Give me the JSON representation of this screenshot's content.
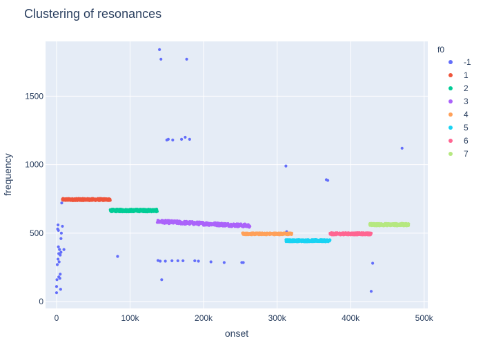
{
  "chart_data": {
    "type": "scatter",
    "title": "Clustering of resonances",
    "xlabel": "onset",
    "ylabel": "frequency",
    "xlim": [
      -15000,
      505000
    ],
    "ylim": [
      -50,
      1900
    ],
    "x_ticks": [
      0,
      100000,
      200000,
      300000,
      400000,
      500000
    ],
    "x_tick_labels": [
      "0",
      "100k",
      "200k",
      "300k",
      "400k",
      "500k"
    ],
    "y_ticks": [
      0,
      500,
      1000,
      1500
    ],
    "y_tick_labels": [
      "0",
      "500",
      "1000",
      "1500"
    ],
    "grid": true,
    "legend_title": "f0",
    "legend_position": "right",
    "series": [
      {
        "name": "-1",
        "color": "#636efa",
        "points": [
          [
            0,
            65
          ],
          [
            0,
            110
          ],
          [
            500,
            160
          ],
          [
            1000,
            270
          ],
          [
            1500,
            530
          ],
          [
            2000,
            560
          ],
          [
            2500,
            520
          ],
          [
            3000,
            350
          ],
          [
            3500,
            290
          ],
          [
            2500,
            400
          ],
          [
            4000,
            380
          ],
          [
            4500,
            170
          ],
          [
            5000,
            200
          ],
          [
            5500,
            90
          ],
          [
            6000,
            460
          ],
          [
            6500,
            500
          ],
          [
            7000,
            720
          ],
          [
            8000,
            550
          ],
          [
            10000,
            380
          ],
          [
            3000,
            180
          ],
          [
            2000,
            310
          ],
          [
            6000,
            360
          ],
          [
            5000,
            340
          ],
          [
            83000,
            330
          ],
          [
            140000,
            1840
          ],
          [
            142000,
            1770
          ],
          [
            138000,
            300
          ],
          [
            141000,
            295
          ],
          [
            143000,
            160
          ],
          [
            148000,
            295
          ],
          [
            150000,
            1180
          ],
          [
            152000,
            1185
          ],
          [
            158000,
            1180
          ],
          [
            157000,
            298
          ],
          [
            165000,
            298
          ],
          [
            170000,
            1185
          ],
          [
            175000,
            1200
          ],
          [
            177000,
            1770
          ],
          [
            181000,
            1185
          ],
          [
            172000,
            298
          ],
          [
            188000,
            298
          ],
          [
            193000,
            295
          ],
          [
            210000,
            290
          ],
          [
            228000,
            285
          ],
          [
            252000,
            285
          ],
          [
            254000,
            285
          ],
          [
            312000,
            990
          ],
          [
            313000,
            510
          ],
          [
            367000,
            890
          ],
          [
            369000,
            885
          ],
          [
            428000,
            75
          ],
          [
            430000,
            280
          ],
          [
            470000,
            1120
          ]
        ]
      },
      {
        "name": "1",
        "color": "#ef553b",
        "x_range": [
          8000,
          73000
        ],
        "y_center": 745,
        "y_jitter": 8
      },
      {
        "name": "2",
        "color": "#00cc96",
        "x_range": [
          73000,
          137000
        ],
        "y_center": 665,
        "y_jitter": 10
      },
      {
        "name": "3",
        "color": "#ab63fa",
        "x_range": [
          137000,
          263000
        ],
        "y_center": 585,
        "y_slope": -0.00025,
        "y_jitter": 12
      },
      {
        "name": "4",
        "color": "#ffa15a",
        "x_range": [
          253000,
          320000
        ],
        "y_center": 495,
        "y_jitter": 7
      },
      {
        "name": "5",
        "color": "#19d3f3",
        "x_range": [
          312000,
          372000
        ],
        "y_center": 445,
        "y_jitter": 8
      },
      {
        "name": "6",
        "color": "#ff6692",
        "x_range": [
          372000,
          428000
        ],
        "y_center": 495,
        "y_jitter": 8
      },
      {
        "name": "7",
        "color": "#b6e880",
        "x_range": [
          426000,
          479000
        ],
        "y_center": 562,
        "y_jitter": 9
      }
    ]
  }
}
